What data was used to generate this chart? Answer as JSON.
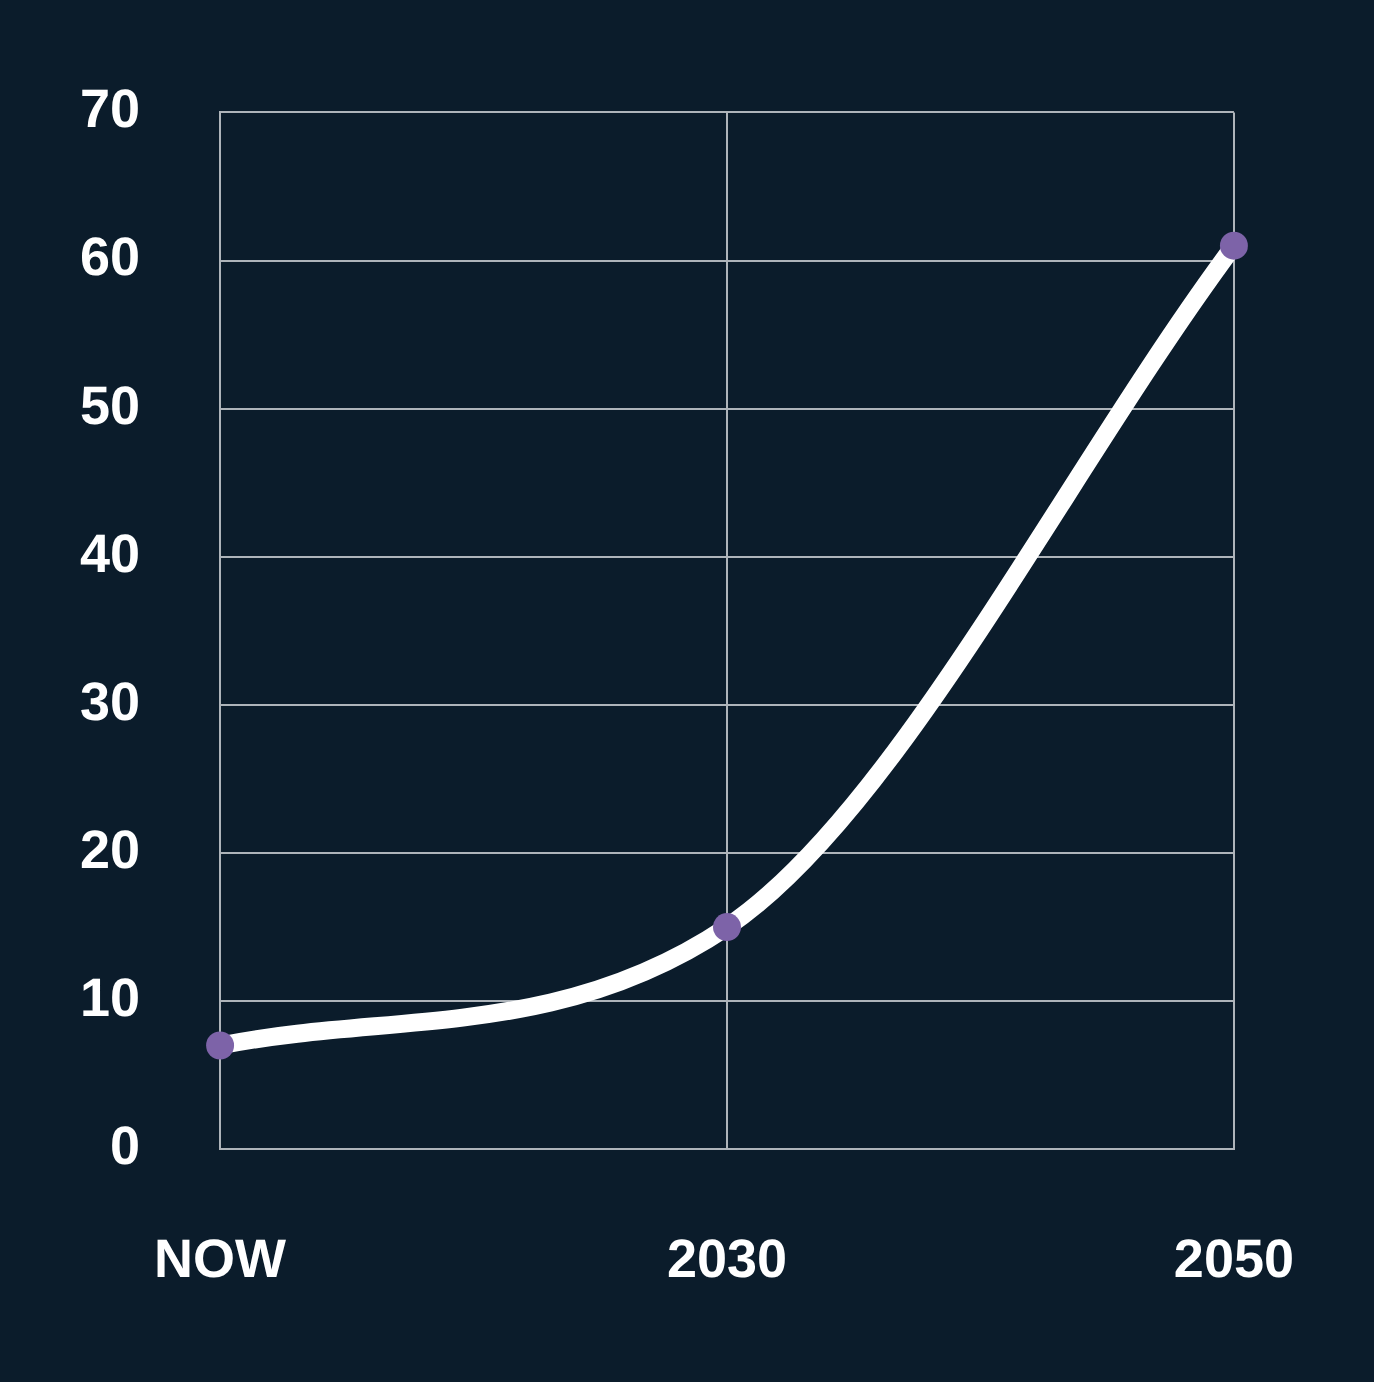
{
  "chart_data": {
    "type": "line",
    "categories": [
      "NOW",
      "2030",
      "2050"
    ],
    "series": [
      {
        "color": "#ffffff",
        "values": [
          7,
          15,
          61
        ]
      }
    ],
    "marker": "circle",
    "line_style": "solid",
    "grid": true,
    "legend": false,
    "ylim": [
      0,
      70
    ],
    "yticks": [
      0,
      10,
      20,
      30,
      40,
      50,
      60,
      70
    ]
  }
}
